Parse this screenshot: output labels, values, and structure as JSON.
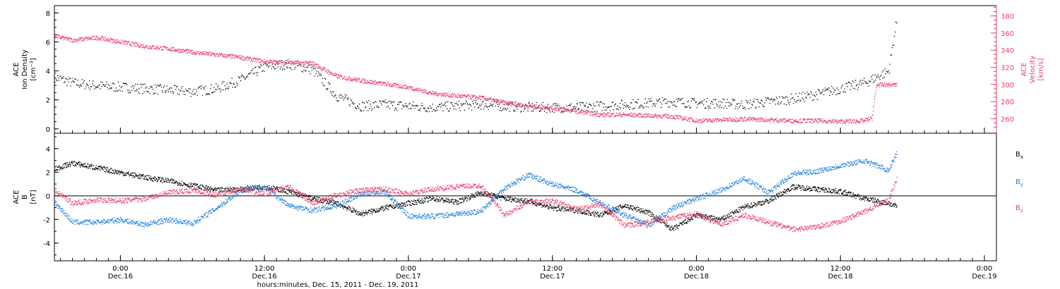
{
  "chart_data": [
    {
      "type": "scatter",
      "title": "",
      "ylabel_lines": [
        "ACE",
        "Ion Density",
        "[cm⁻³]"
      ],
      "y2label_lines": [
        "ACE",
        "Velocity",
        "[km/s]"
      ],
      "ylim": [
        -0.3,
        8.5
      ],
      "yticks": [
        "0",
        "2",
        "4",
        "6",
        "8"
      ],
      "y2lim": [
        243,
        392
      ],
      "y2ticks": [
        "260",
        "280",
        "300",
        "320",
        "340",
        "360",
        "380"
      ],
      "x_unit": "hours since 2011-12-15 00:00",
      "series": [
        {
          "color": "#000000",
          "axis": "left",
          "x": [
            18.5,
            20,
            22,
            24,
            26,
            28,
            30,
            32,
            34,
            36,
            38,
            40,
            42,
            44,
            46,
            48,
            50,
            52,
            54,
            56,
            58,
            60,
            62,
            64,
            66,
            68,
            70,
            72,
            74,
            76,
            78,
            80,
            82,
            84,
            86,
            88,
            88.7
          ],
          "values": [
            3.6,
            3.2,
            3.0,
            2.9,
            2.8,
            2.7,
            2.6,
            2.8,
            3.4,
            4.3,
            4.5,
            4.1,
            2.3,
            1.6,
            1.7,
            1.6,
            1.5,
            1.6,
            1.7,
            1.6,
            1.5,
            1.5,
            1.5,
            1.6,
            1.7,
            1.8,
            1.9,
            1.8,
            1.8,
            1.7,
            1.9,
            2.1,
            2.4,
            2.8,
            3.2,
            4.0,
            7.7
          ]
        },
        {
          "color": "#e8406b",
          "axis": "right",
          "x": [
            18.5,
            20,
            22,
            24,
            26,
            28,
            30,
            32,
            34,
            36,
            38,
            40,
            42,
            44,
            46,
            48,
            50,
            52,
            54,
            56,
            58,
            60,
            62,
            64,
            66,
            68,
            70,
            72,
            74,
            76,
            78,
            80,
            82,
            84,
            86,
            86.6,
            87,
            88.7
          ],
          "values": [
            357,
            352,
            355,
            350,
            345,
            342,
            338,
            335,
            332,
            327,
            326,
            325,
            310,
            305,
            301,
            297,
            290,
            287,
            285,
            279,
            275,
            273,
            269,
            265,
            265,
            264,
            263,
            258,
            259,
            260,
            259,
            258,
            258,
            257,
            258,
            261,
            300,
            300
          ]
        }
      ]
    },
    {
      "type": "scatter",
      "title": "",
      "ylabel_lines": [
        "ACE",
        "B",
        "[nT]"
      ],
      "ylim": [
        -5.5,
        5.3
      ],
      "yticks": [
        "-4",
        "-2",
        "0",
        "2",
        "4"
      ],
      "xlim": [
        18.5,
        97
      ],
      "xtick_labels": [
        [
          "0:00",
          "Dec.16"
        ],
        [
          "12:00",
          "Dec.16"
        ],
        [
          "0:00",
          "Dec.17"
        ],
        [
          "12:00",
          "Dec.17"
        ],
        [
          "0:00",
          "Dec.18"
        ],
        [
          "12:00",
          "Dec.18"
        ],
        [
          "0:00",
          "Dec.19"
        ]
      ],
      "xlabel": "hours:minutes, Dec. 15, 2011 - Dec. 19, 2011",
      "series": [
        {
          "name": "Bx",
          "color": "#000000",
          "x": [
            18.5,
            20,
            22,
            24,
            26,
            28,
            30,
            32,
            34,
            36,
            38,
            40,
            42,
            44,
            46,
            48,
            50,
            52,
            54,
            56,
            58,
            60,
            62,
            64,
            66,
            68,
            70,
            72,
            74,
            76,
            78,
            80,
            82,
            84,
            86,
            88,
            88.7
          ],
          "values": [
            2.3,
            2.8,
            2.4,
            2.0,
            1.6,
            1.3,
            0.9,
            0.5,
            0.6,
            0.8,
            0.4,
            -0.2,
            -0.6,
            -1.5,
            -1.0,
            -0.6,
            -0.2,
            -0.5,
            0.3,
            -0.2,
            -0.4,
            -1.0,
            -1.2,
            -1.6,
            -0.8,
            -1.4,
            -2.8,
            -1.6,
            -2.0,
            -0.9,
            -0.4,
            0.8,
            0.6,
            0.4,
            -0.2,
            -0.6,
            -0.9
          ]
        },
        {
          "name": "By",
          "color": "#1a7fde",
          "x": [
            18.5,
            20,
            22,
            24,
            26,
            28,
            30,
            32,
            34,
            36,
            38,
            40,
            42,
            44,
            46,
            48,
            50,
            52,
            54,
            56,
            58,
            60,
            62,
            64,
            66,
            68,
            70,
            72,
            74,
            76,
            78,
            80,
            82,
            84,
            86,
            88,
            88.7
          ],
          "values": [
            -0.5,
            -2.2,
            -2.2,
            -2.0,
            -2.4,
            -2.0,
            -2.3,
            -1.0,
            0.5,
            0.8,
            -0.8,
            -1.2,
            -0.8,
            0.2,
            0.4,
            -1.7,
            -1.7,
            -1.5,
            -1.3,
            0.7,
            1.8,
            1.0,
            0.5,
            -0.6,
            -1.6,
            -2.5,
            -1.0,
            -0.2,
            0.5,
            1.5,
            0.3,
            1.9,
            2.1,
            2.6,
            3.0,
            2.2,
            3.7
          ]
        },
        {
          "name": "Bz",
          "color": "#e8406b",
          "x": [
            18.5,
            20,
            22,
            24,
            26,
            28,
            30,
            32,
            34,
            36,
            38,
            40,
            42,
            44,
            46,
            48,
            50,
            52,
            54,
            56,
            58,
            60,
            62,
            64,
            66,
            68,
            70,
            72,
            74,
            76,
            78,
            80,
            82,
            84,
            86,
            88,
            88.7
          ],
          "values": [
            0.5,
            -0.6,
            -0.3,
            -0.4,
            -0.2,
            0.3,
            0.5,
            0.1,
            0.6,
            0.2,
            0.8,
            -0.6,
            0.1,
            0.5,
            0.6,
            0.2,
            0.6,
            0.8,
            0.9,
            -1.6,
            -0.5,
            -0.4,
            -1.1,
            -0.7,
            -2.5,
            -2.2,
            -1.8,
            -1.5,
            -2.4,
            -1.6,
            -2.2,
            -2.8,
            -2.6,
            -2.1,
            -1.3,
            -0.3,
            1.5
          ]
        }
      ]
    }
  ]
}
